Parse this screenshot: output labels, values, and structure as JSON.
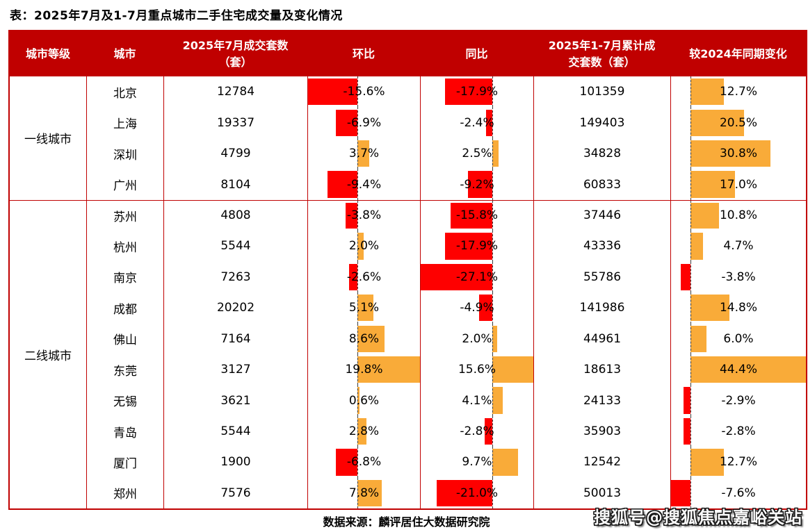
{
  "title": "表：2025年7月及1-7月重点城市二手住宅成交量及变化情况",
  "colors": {
    "header_bg": "#C00000",
    "table_border": "#C00000",
    "negative_bar": "#FE0000",
    "positive_bar": "#F9AB39"
  },
  "table": {
    "headers": [
      "城市等级",
      "城市",
      "2025年7月成交套数（套）",
      "环比",
      "同比",
      "2025年1-7月累计成交套数（套）",
      "较2024年同期变化"
    ],
    "groups": [
      {
        "label": "一线城市",
        "rows": [
          {
            "city": "北京",
            "jul": "12784",
            "mom": -15.6,
            "mom_label": "-15.6%",
            "yoy": -17.9,
            "yoy_label": "-17.9%",
            "cum": "101359",
            "vs2024": 12.7,
            "vs2024_label": "12.7%"
          },
          {
            "city": "上海",
            "jul": "19337",
            "mom": -6.9,
            "mom_label": "-6.9%",
            "yoy": -2.4,
            "yoy_label": "-2.4%",
            "cum": "149403",
            "vs2024": 20.5,
            "vs2024_label": "20.5%"
          },
          {
            "city": "深圳",
            "jul": "4799",
            "mom": 3.7,
            "mom_label": "3.7%",
            "yoy": 2.5,
            "yoy_label": "2.5%",
            "cum": "34828",
            "vs2024": 30.8,
            "vs2024_label": "30.8%"
          },
          {
            "city": "广州",
            "jul": "8104",
            "mom": -9.4,
            "mom_label": "-9.4%",
            "yoy": -9.2,
            "yoy_label": "-9.2%",
            "cum": "60833",
            "vs2024": 17.0,
            "vs2024_label": "17.0%"
          }
        ]
      },
      {
        "label": "二线城市",
        "rows": [
          {
            "city": "苏州",
            "jul": "4808",
            "mom": -3.8,
            "mom_label": "-3.8%",
            "yoy": -15.8,
            "yoy_label": "-15.8%",
            "cum": "37446",
            "vs2024": 10.8,
            "vs2024_label": "10.8%"
          },
          {
            "city": "杭州",
            "jul": "5544",
            "mom": 2.0,
            "mom_label": "2.0%",
            "yoy": -17.9,
            "yoy_label": "-17.9%",
            "cum": "43336",
            "vs2024": 4.7,
            "vs2024_label": "4.7%"
          },
          {
            "city": "南京",
            "jul": "7263",
            "mom": -2.6,
            "mom_label": "-2.6%",
            "yoy": -27.1,
            "yoy_label": "-27.1%",
            "cum": "55786",
            "vs2024": -3.8,
            "vs2024_label": "-3.8%"
          },
          {
            "city": "成都",
            "jul": "20202",
            "mom": 5.1,
            "mom_label": "5.1%",
            "yoy": -4.9,
            "yoy_label": "-4.9%",
            "cum": "141986",
            "vs2024": 14.8,
            "vs2024_label": "14.8%"
          },
          {
            "city": "佛山",
            "jul": "7164",
            "mom": 8.6,
            "mom_label": "8.6%",
            "yoy": 2.0,
            "yoy_label": "2.0%",
            "cum": "44961",
            "vs2024": 6.0,
            "vs2024_label": "6.0%"
          },
          {
            "city": "东莞",
            "jul": "3127",
            "mom": 19.8,
            "mom_label": "19.8%",
            "yoy": 15.6,
            "yoy_label": "15.6%",
            "cum": "18613",
            "vs2024": 44.4,
            "vs2024_label": "44.4%"
          },
          {
            "city": "无锡",
            "jul": "3621",
            "mom": 0.6,
            "mom_label": "0.6%",
            "yoy": 4.1,
            "yoy_label": "4.1%",
            "cum": "24133",
            "vs2024": -2.9,
            "vs2024_label": "-2.9%"
          },
          {
            "city": "青岛",
            "jul": "5544",
            "mom": 2.8,
            "mom_label": "2.8%",
            "yoy": -2.8,
            "yoy_label": "-2.8%",
            "cum": "35903",
            "vs2024": -2.8,
            "vs2024_label": "-2.8%"
          },
          {
            "city": "厦门",
            "jul": "1900",
            "mom": -6.8,
            "mom_label": "-6.8%",
            "yoy": 9.7,
            "yoy_label": "9.7%",
            "cum": "12542",
            "vs2024": 12.7,
            "vs2024_label": "12.7%"
          },
          {
            "city": "郑州",
            "jul": "7576",
            "mom": 7.8,
            "mom_label": "7.8%",
            "yoy": -21.0,
            "yoy_label": "-21.0%",
            "cum": "50013",
            "vs2024": -7.6,
            "vs2024_label": "-7.6%"
          }
        ]
      }
    ]
  },
  "bar_scales": {
    "mom": {
      "min": -15.6,
      "max": 19.8
    },
    "yoy": {
      "min": -27.1,
      "max": 15.6
    },
    "vs2024": {
      "min": -7.6,
      "max": 44.4
    }
  },
  "footer": {
    "source": "数据来源：麟评居住大数据研究院",
    "watermark": "搜狐号@搜狐焦点嘉峪关站"
  },
  "chart_data": {
    "type": "table",
    "title": "2025年7月及1-7月重点城市二手住宅成交量及变化情况",
    "columns": [
      "城市等级",
      "城市",
      "2025年7月成交套数（套）",
      "环比",
      "同比",
      "2025年1-7月累计成交套数（套）",
      "较2024年同期变化"
    ],
    "embedded_bar_columns": [
      {
        "column": "环比",
        "unit": "%",
        "axis_min": -15.6,
        "axis_max": 19.8,
        "negative_color": "#FE0000",
        "positive_color": "#F9AB39"
      },
      {
        "column": "同比",
        "unit": "%",
        "axis_min": -27.1,
        "axis_max": 15.6,
        "negative_color": "#FE0000",
        "positive_color": "#F9AB39"
      },
      {
        "column": "较2024年同期变化",
        "unit": "%",
        "axis_min": -7.6,
        "axis_max": 44.4,
        "negative_color": "#FE0000",
        "positive_color": "#F9AB39"
      }
    ],
    "rows": [
      [
        "一线城市",
        "北京",
        12784,
        -15.6,
        -17.9,
        101359,
        12.7
      ],
      [
        "一线城市",
        "上海",
        19337,
        -6.9,
        -2.4,
        149403,
        20.5
      ],
      [
        "一线城市",
        "深圳",
        4799,
        3.7,
        2.5,
        34828,
        30.8
      ],
      [
        "一线城市",
        "广州",
        8104,
        -9.4,
        -9.2,
        60833,
        17.0
      ],
      [
        "二线城市",
        "苏州",
        4808,
        -3.8,
        -15.8,
        37446,
        10.8
      ],
      [
        "二线城市",
        "杭州",
        5544,
        2.0,
        -17.9,
        43336,
        4.7
      ],
      [
        "二线城市",
        "南京",
        7263,
        -2.6,
        -27.1,
        55786,
        -3.8
      ],
      [
        "二线城市",
        "成都",
        20202,
        5.1,
        -4.9,
        141986,
        14.8
      ],
      [
        "二线城市",
        "佛山",
        7164,
        8.6,
        2.0,
        44961,
        6.0
      ],
      [
        "二线城市",
        "东莞",
        3127,
        19.8,
        15.6,
        18613,
        44.4
      ],
      [
        "二线城市",
        "无锡",
        3621,
        0.6,
        4.1,
        24133,
        -2.9
      ],
      [
        "二线城市",
        "青岛",
        5544,
        2.8,
        -2.8,
        35903,
        -2.8
      ],
      [
        "二线城市",
        "厦门",
        1900,
        -6.8,
        9.7,
        12542,
        12.7
      ],
      [
        "二线城市",
        "郑州",
        7576,
        7.8,
        -21.0,
        50013,
        -7.6
      ]
    ]
  }
}
